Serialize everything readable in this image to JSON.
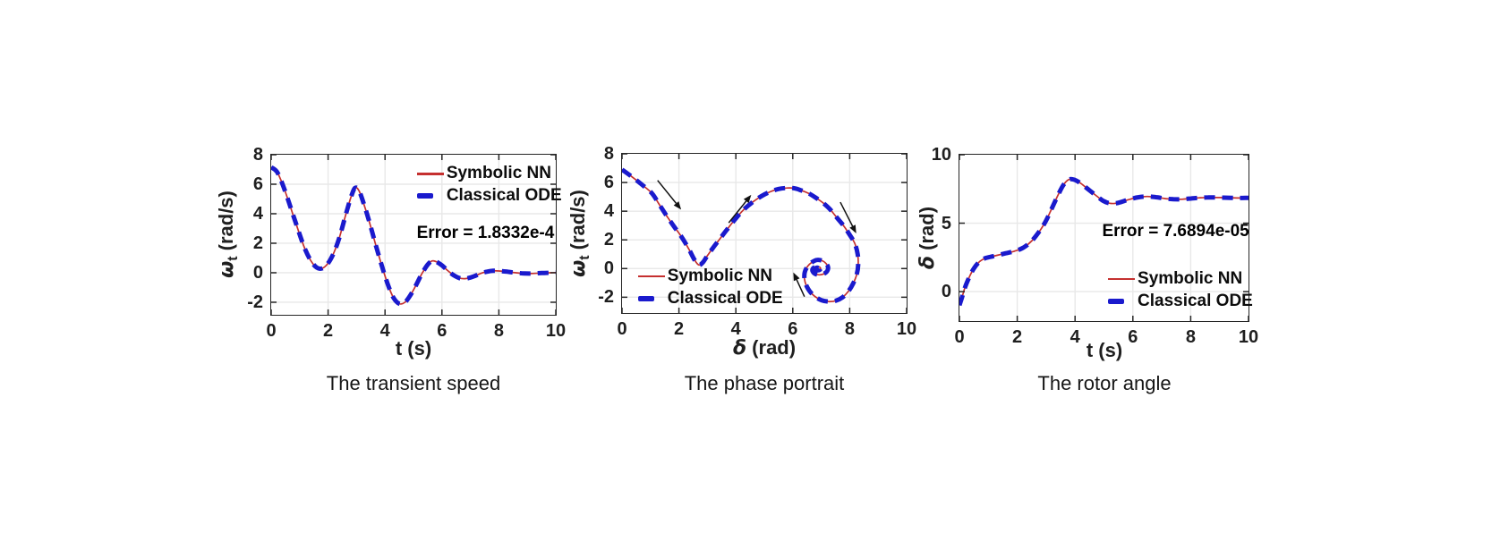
{
  "theme": {
    "background": "#ffffff",
    "axis_color": "#262626",
    "grid_color": "#e8e8e8",
    "arrow_color": "#111111",
    "red": "#c5302f",
    "blue": "#1a1acd"
  },
  "chart_data": [
    {
      "id": "transient-speed",
      "type": "line",
      "caption": "The transient speed",
      "xlabel": {
        "sym": "",
        "sub": "",
        "rest": "t (s)"
      },
      "ylabel": {
        "sym": "ω",
        "sub": "t",
        "rest": " (rad/s)"
      },
      "xlim": [
        0,
        10
      ],
      "ylim": [
        -2.85,
        8
      ],
      "xticks": [
        0,
        2,
        4,
        6,
        8,
        10
      ],
      "yticks": [
        -2,
        0,
        2,
        4,
        6,
        8
      ],
      "grid": true,
      "annotation": {
        "text": "Error = 1.8332e-4",
        "x": 0.753,
        "y": 0.492
      },
      "legend": {
        "x": 0.512,
        "y": 0.05
      },
      "series": [
        {
          "name": "Symbolic NN",
          "style": "solid",
          "color": "#c5302f",
          "width": 1.7
        },
        {
          "name": "Classical ODE",
          "style": "dashed",
          "color": "#1a1acd",
          "width": 5
        }
      ],
      "points": [
        [
          0,
          7.15
        ],
        [
          0.2,
          6.85
        ],
        [
          0.4,
          6.0
        ],
        [
          0.6,
          4.9
        ],
        [
          0.8,
          3.75
        ],
        [
          1.0,
          2.6
        ],
        [
          1.2,
          1.55
        ],
        [
          1.4,
          0.8
        ],
        [
          1.6,
          0.35
        ],
        [
          1.8,
          0.3
        ],
        [
          2.0,
          0.65
        ],
        [
          2.2,
          1.35
        ],
        [
          2.4,
          2.4
        ],
        [
          2.6,
          3.8
        ],
        [
          2.8,
          5.1
        ],
        [
          2.95,
          5.75
        ],
        [
          3.1,
          5.5
        ],
        [
          3.3,
          4.4
        ],
        [
          3.5,
          3.1
        ],
        [
          3.7,
          1.7
        ],
        [
          3.9,
          0.4
        ],
        [
          4.1,
          -0.8
        ],
        [
          4.3,
          -1.7
        ],
        [
          4.5,
          -2.1
        ],
        [
          4.7,
          -2.0
        ],
        [
          4.9,
          -1.5
        ],
        [
          5.1,
          -0.8
        ],
        [
          5.3,
          -0.05
        ],
        [
          5.5,
          0.55
        ],
        [
          5.65,
          0.8
        ],
        [
          5.8,
          0.75
        ],
        [
          6.0,
          0.5
        ],
        [
          6.2,
          0.15
        ],
        [
          6.4,
          -0.15
        ],
        [
          6.6,
          -0.35
        ],
        [
          6.8,
          -0.4
        ],
        [
          7.0,
          -0.32
        ],
        [
          7.2,
          -0.18
        ],
        [
          7.4,
          -0.02
        ],
        [
          7.6,
          0.08
        ],
        [
          7.8,
          0.13
        ],
        [
          8.0,
          0.12
        ],
        [
          8.3,
          0.07
        ],
        [
          8.6,
          0.0
        ],
        [
          8.9,
          -0.05
        ],
        [
          9.2,
          -0.05
        ],
        [
          9.5,
          -0.02
        ],
        [
          9.8,
          0.0
        ],
        [
          10,
          0.01
        ]
      ],
      "arrows": []
    },
    {
      "id": "phase-portrait",
      "type": "line",
      "caption": "The phase portrait",
      "xlabel": {
        "sym": "δ",
        "sub": "",
        "rest": " (rad)"
      },
      "ylabel": {
        "sym": "ω",
        "sub": "t",
        "rest": " (rad/s)"
      },
      "xlim": [
        0,
        10
      ],
      "ylim": [
        -3.1,
        8
      ],
      "xticks": [
        0,
        2,
        4,
        6,
        8,
        10
      ],
      "yticks": [
        -2,
        0,
        2,
        4,
        6,
        8
      ],
      "grid": true,
      "annotation": null,
      "legend": {
        "x": 0.056,
        "y": 0.7
      },
      "series": [
        {
          "name": "Symbolic NN",
          "style": "solid",
          "color": "#c5302f",
          "width": 1.7
        },
        {
          "name": "Classical ODE",
          "style": "dashed",
          "color": "#1a1acd",
          "width": 5
        }
      ],
      "points": [
        [
          0,
          6.9
        ],
        [
          0.35,
          6.4
        ],
        [
          0.7,
          5.85
        ],
        [
          1.05,
          5.25
        ],
        [
          1.3,
          4.5
        ],
        [
          1.56,
          3.7
        ],
        [
          1.82,
          2.95
        ],
        [
          2.08,
          2.25
        ],
        [
          2.35,
          1.35
        ],
        [
          2.55,
          0.6
        ],
        [
          2.7,
          0.25
        ],
        [
          2.85,
          0.45
        ],
        [
          3.0,
          0.9
        ],
        [
          3.2,
          1.45
        ],
        [
          3.45,
          2.1
        ],
        [
          3.7,
          2.75
        ],
        [
          4.0,
          3.5
        ],
        [
          4.3,
          4.15
        ],
        [
          4.6,
          4.65
        ],
        [
          4.9,
          5.05
        ],
        [
          5.2,
          5.35
        ],
        [
          5.5,
          5.55
        ],
        [
          5.8,
          5.62
        ],
        [
          6.05,
          5.6
        ],
        [
          6.3,
          5.45
        ],
        [
          6.55,
          5.25
        ],
        [
          6.8,
          4.95
        ],
        [
          7.05,
          4.6
        ],
        [
          7.3,
          4.15
        ],
        [
          7.55,
          3.55
        ],
        [
          7.8,
          2.95
        ],
        [
          8.0,
          2.35
        ],
        [
          8.18,
          1.75
        ],
        [
          8.28,
          1.0
        ],
        [
          8.3,
          0.3
        ],
        [
          8.25,
          -0.4
        ],
        [
          8.12,
          -1.05
        ],
        [
          7.95,
          -1.6
        ],
        [
          7.75,
          -2.0
        ],
        [
          7.5,
          -2.25
        ],
        [
          7.25,
          -2.3
        ],
        [
          7.0,
          -2.2
        ],
        [
          6.78,
          -1.95
        ],
        [
          6.6,
          -1.6
        ],
        [
          6.47,
          -1.15
        ],
        [
          6.41,
          -0.7
        ],
        [
          6.42,
          -0.25
        ],
        [
          6.52,
          0.15
        ],
        [
          6.68,
          0.45
        ],
        [
          6.85,
          0.6
        ],
        [
          7.03,
          0.55
        ],
        [
          7.17,
          0.35
        ],
        [
          7.24,
          0.1
        ],
        [
          7.21,
          -0.17
        ],
        [
          7.09,
          -0.37
        ],
        [
          6.93,
          -0.44
        ],
        [
          6.78,
          -0.36
        ],
        [
          6.7,
          -0.2
        ],
        [
          6.7,
          -0.02
        ],
        [
          6.78,
          0.1
        ],
        [
          6.89,
          0.13
        ],
        [
          6.97,
          0.05
        ],
        [
          6.96,
          -0.06
        ],
        [
          6.88,
          -0.12
        ],
        [
          6.8,
          -0.06
        ],
        [
          6.8,
          0.02
        ],
        [
          6.86,
          0.06
        ],
        [
          6.9,
          0.02
        ]
      ],
      "arrows": [
        [
          1.25,
          6.15,
          2.08,
          4.11
        ],
        [
          3.75,
          3.19,
          4.54,
          5.14
        ],
        [
          7.67,
          4.63,
          8.23,
          2.45
        ],
        [
          6.41,
          -1.96,
          6.02,
          -0.27
        ]
      ]
    },
    {
      "id": "rotor-angle",
      "type": "line",
      "caption": "The rotor angle",
      "xlabel": {
        "sym": "",
        "sub": "",
        "rest": "t (s)"
      },
      "ylabel": {
        "sym": "δ",
        "sub": "",
        "rest": " (rad)"
      },
      "xlim": [
        0,
        10
      ],
      "ylim": [
        -2.15,
        10
      ],
      "xticks": [
        0,
        2,
        4,
        6,
        8,
        10
      ],
      "yticks": [
        0,
        5,
        10
      ],
      "grid": true,
      "annotation": {
        "text": "Error = 7.6894e-05",
        "x": 0.748,
        "y": 0.462
      },
      "legend": {
        "x": 0.514,
        "y": 0.68
      },
      "series": [
        {
          "name": "Symbolic NN",
          "style": "solid",
          "color": "#c5302f",
          "width": 1.7
        },
        {
          "name": "Classical ODE",
          "style": "dashed",
          "color": "#1a1acd",
          "width": 5
        }
      ],
      "points": [
        [
          0,
          -1.0
        ],
        [
          0.1,
          -0.35
        ],
        [
          0.2,
          0.35
        ],
        [
          0.35,
          1.1
        ],
        [
          0.5,
          1.7
        ],
        [
          0.7,
          2.2
        ],
        [
          0.9,
          2.45
        ],
        [
          1.1,
          2.55
        ],
        [
          1.3,
          2.65
        ],
        [
          1.6,
          2.8
        ],
        [
          1.9,
          2.95
        ],
        [
          2.2,
          3.2
        ],
        [
          2.5,
          3.7
        ],
        [
          2.8,
          4.5
        ],
        [
          3.0,
          5.2
        ],
        [
          3.2,
          6.1
        ],
        [
          3.4,
          7.0
        ],
        [
          3.6,
          7.8
        ],
        [
          3.8,
          8.2
        ],
        [
          4.0,
          8.15
        ],
        [
          4.2,
          7.9
        ],
        [
          4.5,
          7.4
        ],
        [
          4.8,
          6.9
        ],
        [
          5.0,
          6.6
        ],
        [
          5.2,
          6.45
        ],
        [
          5.4,
          6.45
        ],
        [
          5.6,
          6.55
        ],
        [
          5.9,
          6.75
        ],
        [
          6.2,
          6.9
        ],
        [
          6.5,
          6.95
        ],
        [
          6.8,
          6.9
        ],
        [
          7.1,
          6.8
        ],
        [
          7.4,
          6.75
        ],
        [
          7.7,
          6.75
        ],
        [
          8.0,
          6.8
        ],
        [
          8.3,
          6.85
        ],
        [
          8.6,
          6.88
        ],
        [
          9.0,
          6.87
        ],
        [
          9.4,
          6.85
        ],
        [
          9.7,
          6.84
        ],
        [
          10,
          6.85
        ]
      ],
      "arrows": []
    }
  ]
}
